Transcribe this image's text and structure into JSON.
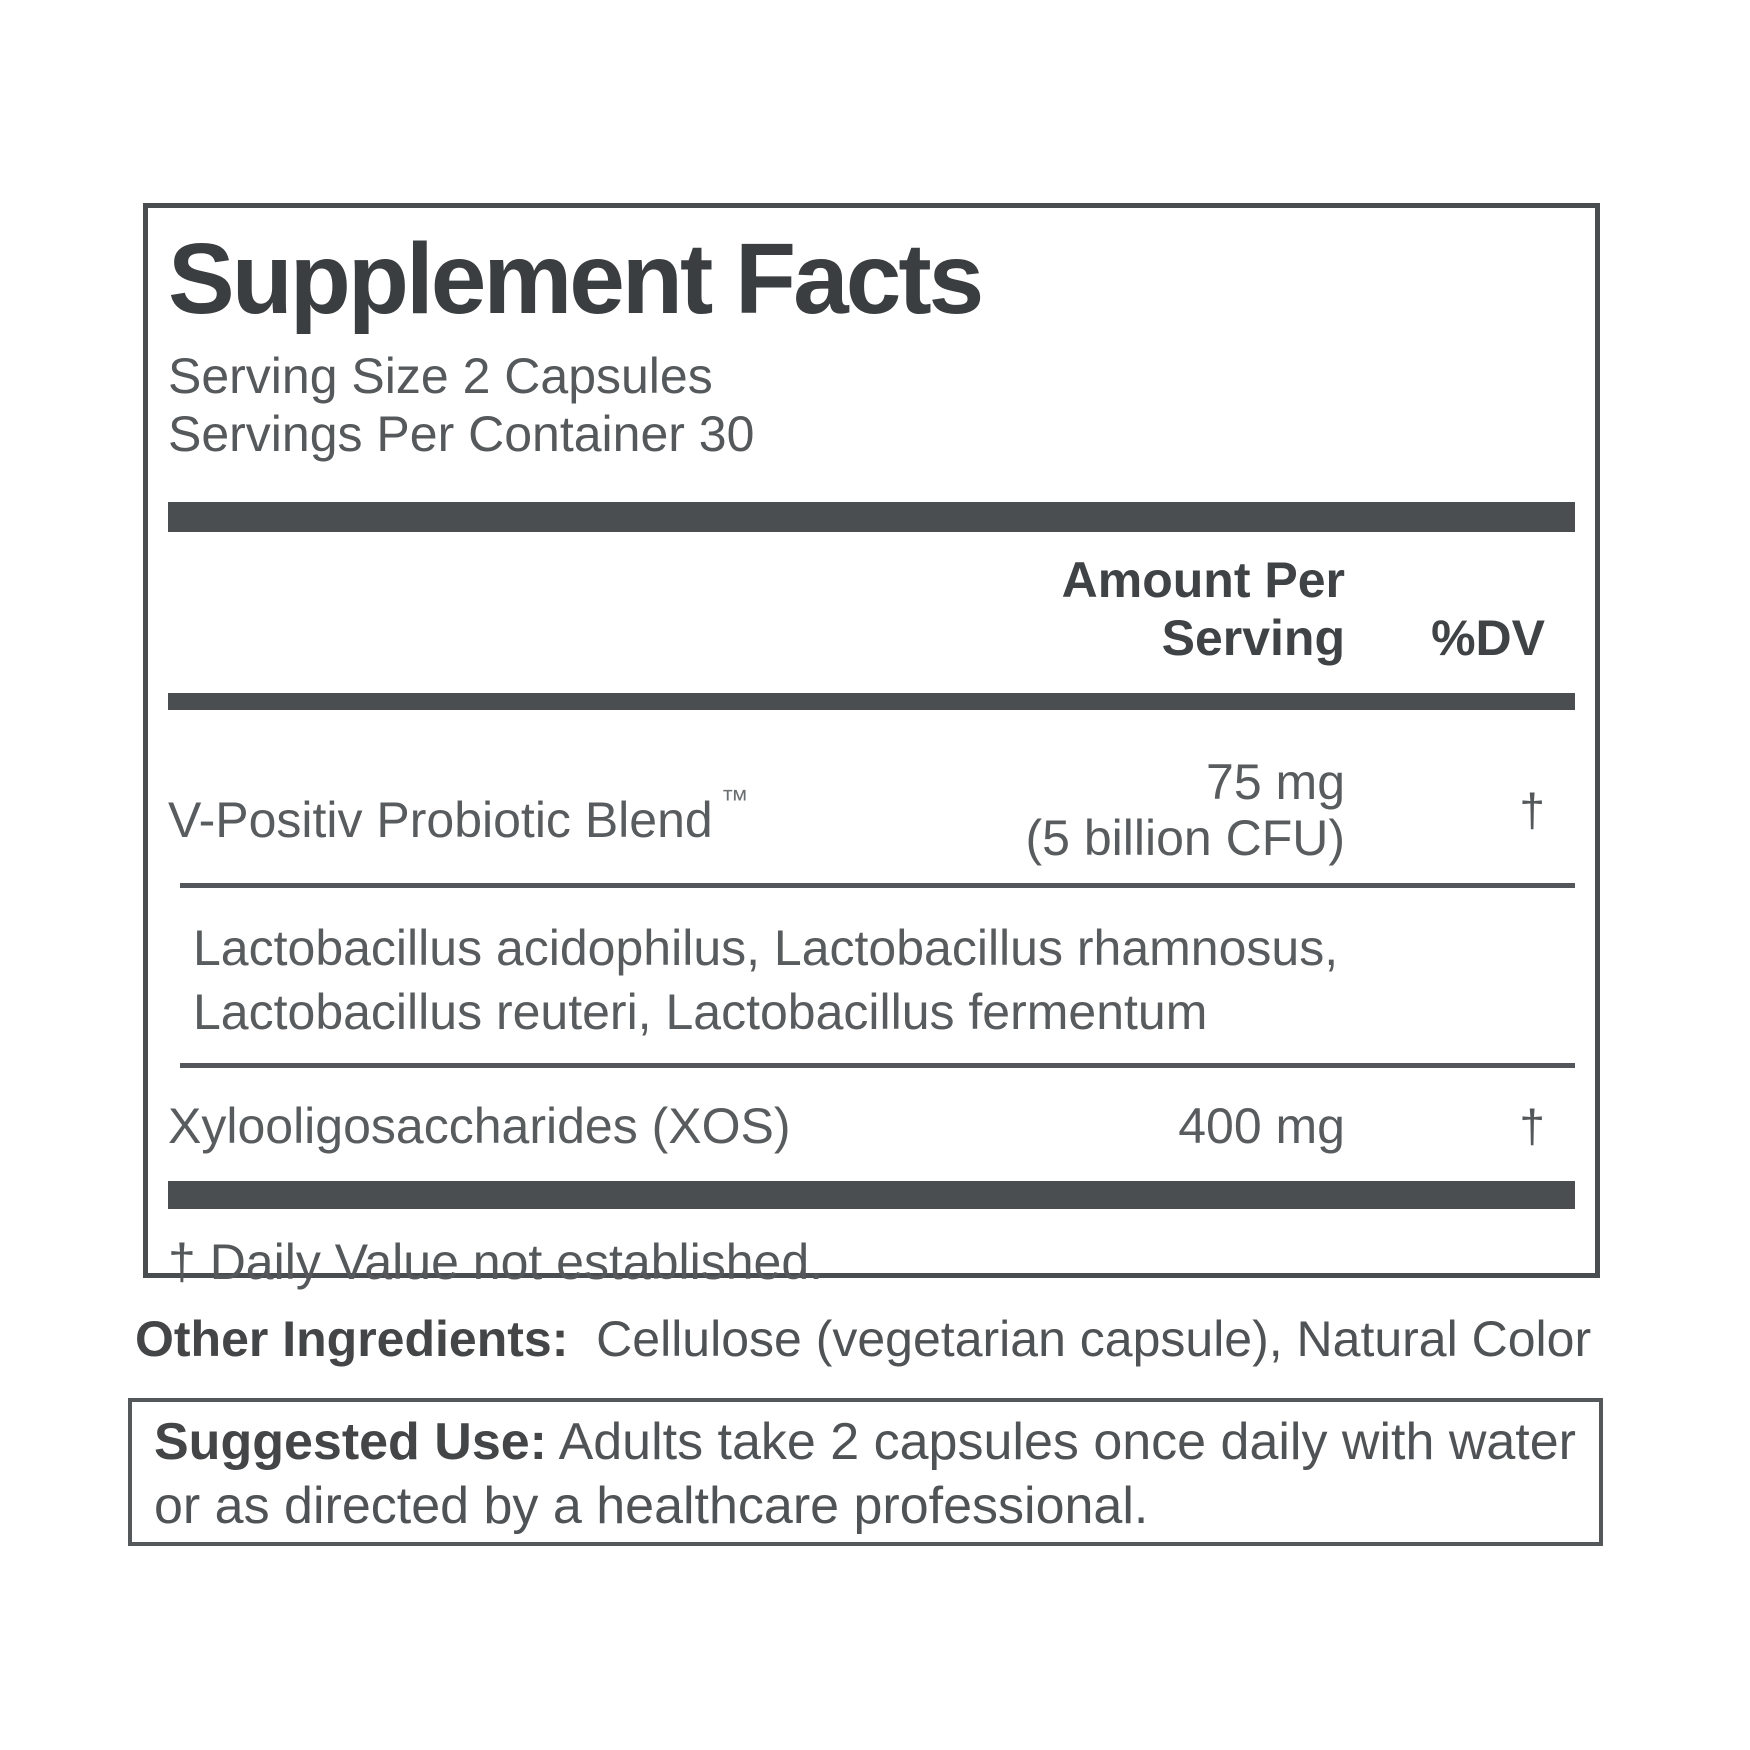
{
  "colors": {
    "panel_border": "#4a4d4f",
    "rule_dark": "#4b4e50",
    "title_text": "#3b3e40",
    "bold_text": "#404345",
    "body_text": "#595c5e"
  },
  "supplement_facts": {
    "title": "Supplement Facts",
    "serving_size": "Serving Size 2 Capsules",
    "servings_per_container": "Servings Per Container 30",
    "header": {
      "amount": "Amount Per Serving",
      "dv": "%DV"
    },
    "rows": [
      {
        "name": "V-Positiv Probiotic Blend",
        "trademark": "™",
        "amount": "75 mg",
        "amount_note": "(5 billion CFU)",
        "dv": "†"
      },
      {
        "name": "Xylooligosaccharides (XOS)",
        "amount": "400 mg",
        "dv": "†"
      }
    ],
    "sub_ingredients": {
      "line1": "Lactobacillus acidophilus, Lactobacillus rhamnosus,",
      "line2": "Lactobacillus reuteri, Lactobacillus fermentum"
    },
    "footnote": "† Daily Value not established."
  },
  "other_ingredients": {
    "label": "Other Ingredients:",
    "text": "Cellulose (vegetarian capsule), Natural Color"
  },
  "suggested_use": {
    "label": "Suggested Use:",
    "text": "Adults take 2 capsules once daily with water or as directed by a healthcare professional."
  }
}
